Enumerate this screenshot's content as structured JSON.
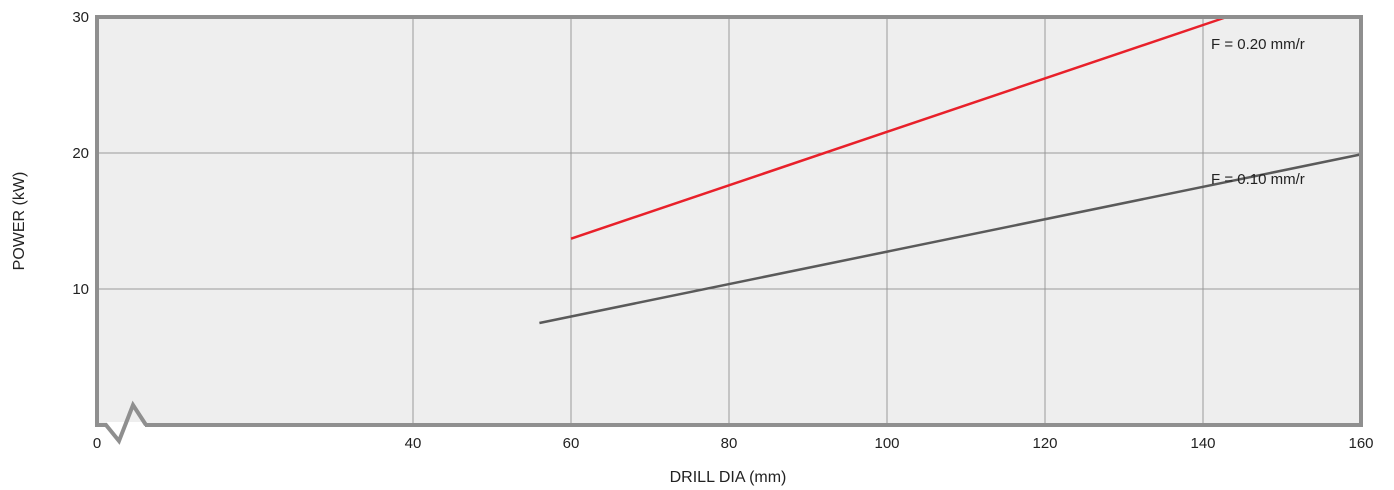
{
  "chart_data": {
    "type": "line",
    "xlabel": "DRILL DIA (mm)",
    "ylabel": "POWER (kW)",
    "xlim": [
      0,
      160
    ],
    "ylim": [
      0,
      30
    ],
    "x_ticks": [
      "0",
      "40",
      "60",
      "80",
      "100",
      "120",
      "140",
      "160"
    ],
    "y_ticks": [
      "10",
      "20",
      "30"
    ],
    "grid": true,
    "axis_break": true,
    "series": [
      {
        "name": "F = 0.20 mm/r",
        "color": "#e8202a",
        "x": [
          60,
          143
        ],
        "y": [
          13.7,
          30
        ]
      },
      {
        "name": "F = 0.10 mm/r",
        "color": "#5a5a5a",
        "x": [
          56,
          160
        ],
        "y": [
          7.5,
          19.9
        ]
      }
    ],
    "colors": {
      "plot_bg": "#eeeeee",
      "grid": "#999999",
      "frame": "#8f8f8f"
    }
  }
}
